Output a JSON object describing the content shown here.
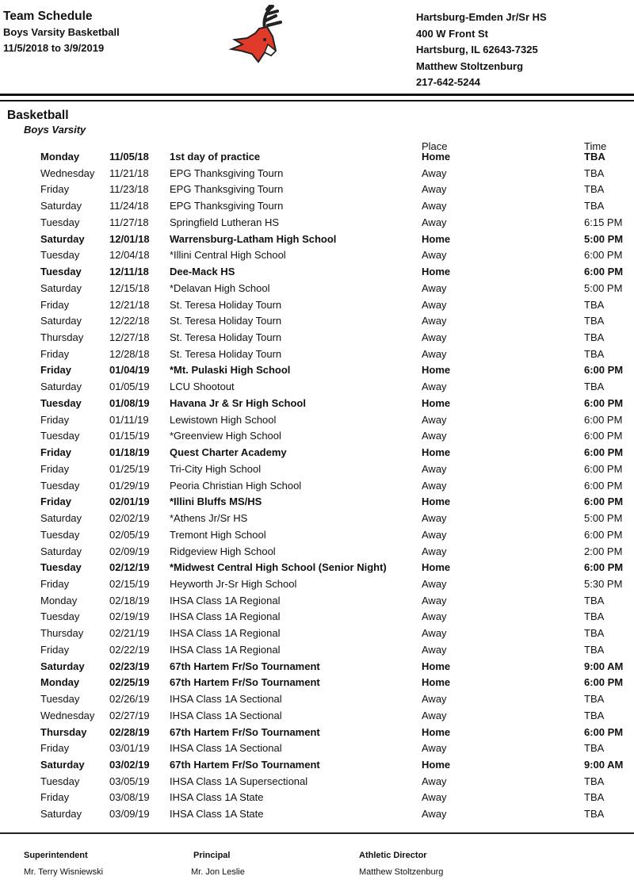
{
  "header": {
    "title": "Team Schedule",
    "subtitle": "Boys Varsity Basketball",
    "date_range": "11/5/2018 to 3/9/2019",
    "school": "Hartsburg-Emden Jr/Sr HS",
    "street": "400 W Front St",
    "city": "Hartsburg, IL 62643-7325",
    "contact": "Matthew Stoltzenburg",
    "phone": "217-642-5244",
    "logo": "red-deer-mascot",
    "logo_color": "#e03a2a"
  },
  "section": {
    "sport": "Basketball",
    "level": "Boys Varsity",
    "place_header": "Place",
    "time_header": "Time"
  },
  "rows": [
    {
      "day": "Monday",
      "date": "11/05/18",
      "event": "1st day of practice",
      "place": "Home",
      "time": "TBA"
    },
    {
      "day": "Wednesday",
      "date": "11/21/18",
      "event": "EPG Thanksgiving Tourn",
      "place": "Away",
      "time": "TBA"
    },
    {
      "day": "Friday",
      "date": "11/23/18",
      "event": "EPG Thanksgiving Tourn",
      "place": "Away",
      "time": "TBA"
    },
    {
      "day": "Saturday",
      "date": "11/24/18",
      "event": "EPG Thanksgiving Tourn",
      "place": "Away",
      "time": "TBA"
    },
    {
      "day": "Tuesday",
      "date": "11/27/18",
      "event": "Springfield Lutheran HS",
      "place": "Away",
      "time": "6:15 PM"
    },
    {
      "day": "Saturday",
      "date": "12/01/18",
      "event": "Warrensburg-Latham High School",
      "place": "Home",
      "time": "5:00 PM"
    },
    {
      "day": "Tuesday",
      "date": "12/04/18",
      "event": "*Illini Central High School",
      "place": "Away",
      "time": "6:00 PM"
    },
    {
      "day": "Tuesday",
      "date": "12/11/18",
      "event": "Dee-Mack HS",
      "place": "Home",
      "time": "6:00 PM"
    },
    {
      "day": "Saturday",
      "date": "12/15/18",
      "event": "*Delavan High School",
      "place": "Away",
      "time": "5:00 PM"
    },
    {
      "day": "Friday",
      "date": "12/21/18",
      "event": "St. Teresa Holiday Tourn",
      "place": "Away",
      "time": "TBA"
    },
    {
      "day": "Saturday",
      "date": "12/22/18",
      "event": "St. Teresa Holiday Tourn",
      "place": "Away",
      "time": "TBA"
    },
    {
      "day": "Thursday",
      "date": "12/27/18",
      "event": "St. Teresa Holiday Tourn",
      "place": "Away",
      "time": "TBA"
    },
    {
      "day": "Friday",
      "date": "12/28/18",
      "event": "St. Teresa Holiday Tourn",
      "place": "Away",
      "time": "TBA"
    },
    {
      "day": "Friday",
      "date": "01/04/19",
      "event": "*Mt. Pulaski High School",
      "place": "Home",
      "time": "6:00 PM"
    },
    {
      "day": "Saturday",
      "date": "01/05/19",
      "event": "LCU Shootout",
      "place": "Away",
      "time": "TBA"
    },
    {
      "day": "Tuesday",
      "date": "01/08/19",
      "event": "Havana Jr & Sr High School",
      "place": "Home",
      "time": "6:00 PM"
    },
    {
      "day": "Friday",
      "date": "01/11/19",
      "event": "Lewistown High School",
      "place": "Away",
      "time": "6:00 PM"
    },
    {
      "day": "Tuesday",
      "date": "01/15/19",
      "event": "*Greenview High School",
      "place": "Away",
      "time": "6:00 PM"
    },
    {
      "day": "Friday",
      "date": "01/18/19",
      "event": "Quest Charter Academy",
      "place": "Home",
      "time": "6:00 PM"
    },
    {
      "day": "Friday",
      "date": "01/25/19",
      "event": "Tri-City High School",
      "place": "Away",
      "time": "6:00 PM"
    },
    {
      "day": "Tuesday",
      "date": "01/29/19",
      "event": "Peoria Christian High School",
      "place": "Away",
      "time": "6:00 PM"
    },
    {
      "day": "Friday",
      "date": "02/01/19",
      "event": "*Illini Bluffs MS/HS",
      "place": "Home",
      "time": "6:00 PM"
    },
    {
      "day": "Saturday",
      "date": "02/02/19",
      "event": "*Athens Jr/Sr HS",
      "place": "Away",
      "time": "5:00 PM"
    },
    {
      "day": "Tuesday",
      "date": "02/05/19",
      "event": "Tremont High School",
      "place": "Away",
      "time": "6:00 PM"
    },
    {
      "day": "Saturday",
      "date": "02/09/19",
      "event": "Ridgeview High School",
      "place": "Away",
      "time": "2:00 PM"
    },
    {
      "day": "Tuesday",
      "date": "02/12/19",
      "event": "*Midwest Central High School (Senior Night)",
      "place": "Home",
      "time": "6:00 PM"
    },
    {
      "day": "Friday",
      "date": "02/15/19",
      "event": "Heyworth Jr-Sr High School",
      "place": "Away",
      "time": "5:30 PM"
    },
    {
      "day": "Monday",
      "date": "02/18/19",
      "event": "IHSA Class 1A Regional",
      "place": "Away",
      "time": "TBA"
    },
    {
      "day": "Tuesday",
      "date": "02/19/19",
      "event": "IHSA Class 1A Regional",
      "place": "Away",
      "time": "TBA"
    },
    {
      "day": "Thursday",
      "date": "02/21/19",
      "event": "IHSA Class 1A Regional",
      "place": "Away",
      "time": "TBA"
    },
    {
      "day": "Friday",
      "date": "02/22/19",
      "event": "IHSA Class 1A Regional",
      "place": "Away",
      "time": "TBA"
    },
    {
      "day": "Saturday",
      "date": "02/23/19",
      "event": "67th Hartem Fr/So Tournament",
      "place": "Home",
      "time": "9:00 AM"
    },
    {
      "day": "Monday",
      "date": "02/25/19",
      "event": "67th Hartem Fr/So Tournament",
      "place": "Home",
      "time": "6:00 PM"
    },
    {
      "day": "Tuesday",
      "date": "02/26/19",
      "event": "IHSA Class 1A Sectional",
      "place": "Away",
      "time": "TBA"
    },
    {
      "day": "Wednesday",
      "date": "02/27/19",
      "event": "IHSA Class 1A Sectional",
      "place": "Away",
      "time": "TBA"
    },
    {
      "day": "Thursday",
      "date": "02/28/19",
      "event": "67th Hartem Fr/So Tournament",
      "place": "Home",
      "time": "6:00 PM"
    },
    {
      "day": "Friday",
      "date": "03/01/19",
      "event": "IHSA Class 1A Sectional",
      "place": "Away",
      "time": "TBA"
    },
    {
      "day": "Saturday",
      "date": "03/02/19",
      "event": "67th Hartem Fr/So Tournament",
      "place": "Home",
      "time": "9:00 AM"
    },
    {
      "day": "Tuesday",
      "date": "03/05/19",
      "event": "IHSA Class 1A Supersectional",
      "place": "Away",
      "time": "TBA"
    },
    {
      "day": "Friday",
      "date": "03/08/19",
      "event": "IHSA Class 1A State",
      "place": "Away",
      "time": "TBA"
    },
    {
      "day": "Saturday",
      "date": "03/09/19",
      "event": "IHSA Class 1A State",
      "place": "Away",
      "time": "TBA"
    }
  ],
  "footer": [
    {
      "role": "Superintendent",
      "name": "Mr. Terry Wisniewski"
    },
    {
      "role": "Principal",
      "name": "Mr. Jon Leslie"
    },
    {
      "role": "Athletic Director",
      "name": "Matthew Stoltzenburg"
    }
  ]
}
